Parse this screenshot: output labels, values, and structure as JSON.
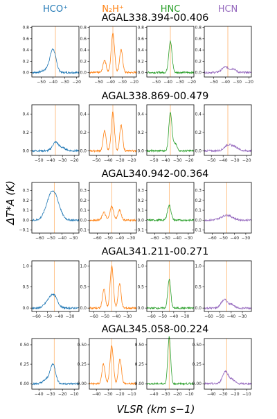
{
  "figure": {
    "ylabel": "ΔT*A (K)",
    "xlabel": "VLSR (km s−1)"
  },
  "columns": [
    {
      "label": "HCO⁺",
      "color": "#1f77b4"
    },
    {
      "label": "N₂H⁺",
      "color": "#ff7f0e"
    },
    {
      "label": "HNC",
      "color": "#2ca02c"
    },
    {
      "label": "HCN",
      "color": "#9467bd"
    }
  ],
  "chart_data": [
    {
      "type": "line",
      "title": "AGAL338.394-00.406",
      "xlim": [
        -58,
        -18
      ],
      "xticks": [
        -50,
        -40,
        -30,
        -20
      ],
      "ylim": [
        -0.08,
        0.82
      ],
      "yticks": [
        "0.0",
        "0.2",
        "0.4",
        "0.6",
        "0.8"
      ],
      "vline": -38,
      "series": [
        {
          "peaks": [
            [
              -40,
              0.38,
              2.5
            ],
            [
              -44,
              0.06,
              4
            ]
          ]
        },
        {
          "peaks": [
            [
              -45,
              0.22,
              1.3
            ],
            [
              -38,
              0.7,
              1.4
            ],
            [
              -31,
              0.4,
              1.3
            ]
          ]
        },
        {
          "peaks": [
            [
              -38,
              0.55,
              1.4
            ]
          ]
        },
        {
          "peaks": [
            [
              -40,
              0.1,
              3
            ],
            [
              -33,
              0.06,
              2
            ]
          ]
        }
      ]
    },
    {
      "type": "line",
      "title": "AGAL338.869-00.479",
      "xlim": [
        -56,
        -16
      ],
      "xticks": [
        -50,
        -40,
        -30,
        -20
      ],
      "ylim": [
        -0.05,
        0.5
      ],
      "yticks": [
        "0.0",
        "0.2",
        "0.4"
      ],
      "vline": -36,
      "series": [
        {
          "peaks": [
            [
              -36,
              0.09,
              2.5
            ],
            [
              -30,
              0.03,
              3
            ]
          ]
        },
        {
          "peaks": [
            [
              -43,
              0.22,
              1.2
            ],
            [
              -36,
              0.42,
              1.3
            ],
            [
              -29,
              0.28,
              1.2
            ]
          ]
        },
        {
          "peaks": [
            [
              -36,
              0.42,
              1.3
            ],
            [
              -32,
              0.08,
              1.5
            ]
          ]
        },
        {
          "peaks": [
            [
              -36,
              0.06,
              3
            ],
            [
              -30,
              0.04,
              3
            ]
          ]
        }
      ]
    },
    {
      "type": "line",
      "title": "AGAL340.942-00.364",
      "xlim": [
        -67,
        -25
      ],
      "xticks": [
        -60,
        -50,
        -40,
        -30
      ],
      "ylim": [
        -0.13,
        0.38
      ],
      "yticks": [
        "−0.1",
        "0.0",
        "0.1",
        "0.2",
        "0.3"
      ],
      "vline": -47,
      "series": [
        {
          "peaks": [
            [
              -47,
              0.24,
              4.5
            ],
            [
              -52,
              0.1,
              4
            ]
          ]
        },
        {
          "peaks": [
            [
              -54,
              0.08,
              1.5
            ],
            [
              -47,
              0.14,
              1.6
            ],
            [
              -40,
              0.1,
              1.5
            ]
          ]
        },
        {
          "peaks": [
            [
              -47,
              0.15,
              1.6
            ]
          ]
        },
        {
          "peaks": [
            [
              -47,
              0.05,
              5
            ]
          ]
        }
      ]
    },
    {
      "type": "line",
      "title": "AGAL341.211-00.271",
      "xlim": [
        -64,
        -22
      ],
      "xticks": [
        -60,
        -50,
        -40,
        -30
      ],
      "ylim": [
        -0.08,
        1.12
      ],
      "yticks": [
        "0.0",
        "0.5",
        "1.0"
      ],
      "vline": -44,
      "series": [
        {
          "peaks": [
            [
              -45,
              0.32,
              3.5
            ],
            [
              -51,
              0.08,
              3
            ]
          ]
        },
        {
          "peaks": [
            [
              -51,
              0.45,
              1.3
            ],
            [
              -44,
              1.0,
              1.4
            ],
            [
              -37,
              0.58,
              1.3
            ]
          ]
        },
        {
          "peaks": [
            [
              -44,
              0.68,
              1.3
            ]
          ]
        },
        {
          "peaks": [
            [
              -46,
              0.2,
              3
            ],
            [
              -39,
              0.08,
              2
            ]
          ]
        }
      ]
    },
    {
      "type": "line",
      "title": "AGAL345.058-00.224",
      "xlim": [
        -46,
        -6
      ],
      "xticks": [
        -40,
        -30,
        -20,
        -10
      ],
      "ylim": [
        -0.07,
        0.58
      ],
      "yticks": [
        "0.00",
        "0.25",
        "0.50"
      ],
      "vline": -27,
      "series": [
        {
          "peaks": [
            [
              -28,
              0.24,
              2.2
            ],
            [
              -33,
              0.06,
              3
            ]
          ]
        },
        {
          "peaks": [
            [
              -34,
              0.25,
              1.3
            ],
            [
              -27,
              0.48,
              1.4
            ],
            [
              -20,
              0.32,
              1.3
            ]
          ]
        },
        {
          "peaks": [
            [
              -27,
              0.6,
              1.2
            ]
          ]
        },
        {
          "peaks": [
            [
              -28,
              0.16,
              2.5
            ],
            [
              -22,
              0.05,
              2
            ]
          ]
        }
      ]
    }
  ]
}
